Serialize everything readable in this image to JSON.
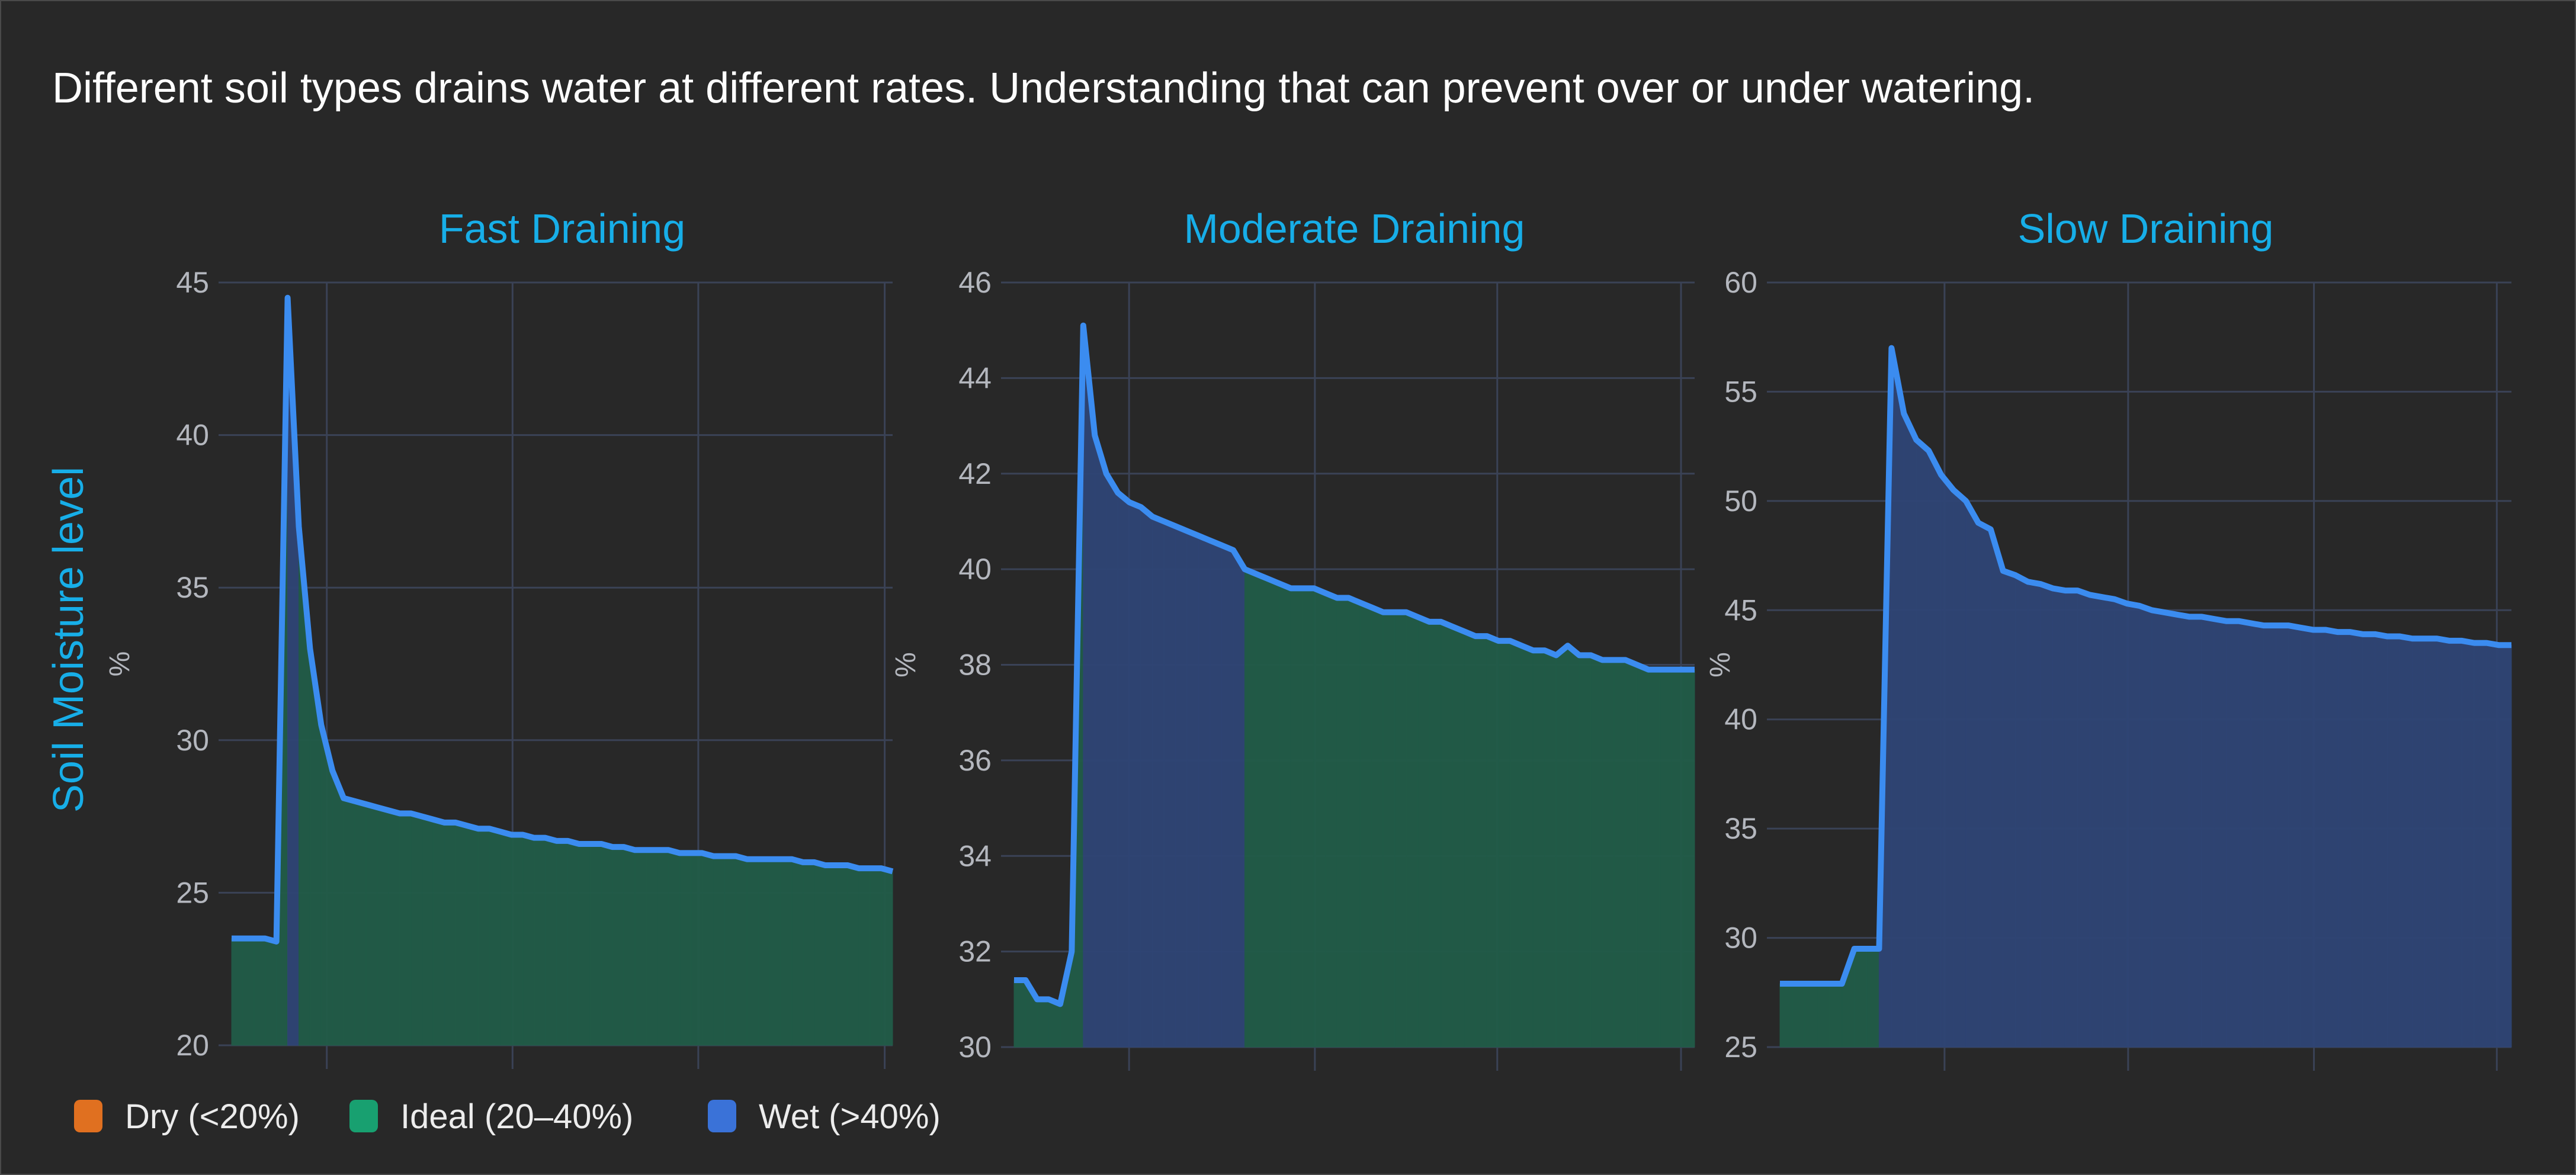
{
  "headline": "Different soil types drains water at different rates. Understanding that can prevent over or under watering.",
  "colors": {
    "background": "#282828",
    "grid": "#3a4256",
    "line": "#3b8cf0",
    "dry": "#e07020",
    "ideal": "#18a070",
    "wet": "#3a72d8",
    "ideal_fill": "#215c48",
    "wet_fill": "#2f4575",
    "title": "#17aee8"
  },
  "chart_data": [
    {
      "type": "area",
      "title": "Fast Draining",
      "ylabel": "Soil Moisture level",
      "yunit": "%",
      "ylim": [
        20,
        45
      ],
      "yticks": [
        20,
        25,
        30,
        35,
        40,
        45
      ],
      "grid": true,
      "values": [
        23.5,
        23.5,
        23.5,
        23.5,
        23.4,
        44.5,
        37.0,
        33.0,
        30.5,
        29.0,
        28.1,
        28.0,
        27.9,
        27.8,
        27.7,
        27.6,
        27.6,
        27.5,
        27.4,
        27.3,
        27.3,
        27.2,
        27.1,
        27.1,
        27.0,
        26.9,
        26.9,
        26.8,
        26.8,
        26.7,
        26.7,
        26.6,
        26.6,
        26.6,
        26.5,
        26.5,
        26.4,
        26.4,
        26.4,
        26.4,
        26.3,
        26.3,
        26.3,
        26.2,
        26.2,
        26.2,
        26.1,
        26.1,
        26.1,
        26.1,
        26.1,
        26.0,
        26.0,
        25.9,
        25.9,
        25.9,
        25.8,
        25.8,
        25.8,
        25.7
      ]
    },
    {
      "type": "area",
      "title": "Moderate Draining",
      "yunit": "%",
      "ylim": [
        30,
        46
      ],
      "yticks": [
        30,
        32,
        34,
        36,
        38,
        40,
        42,
        44,
        46
      ],
      "grid": true,
      "values": [
        31.4,
        31.4,
        31.0,
        31.0,
        30.9,
        32.0,
        45.1,
        42.8,
        42.0,
        41.6,
        41.4,
        41.3,
        41.1,
        41.0,
        40.9,
        40.8,
        40.7,
        40.6,
        40.5,
        40.4,
        40.0,
        39.9,
        39.8,
        39.7,
        39.6,
        39.6,
        39.6,
        39.5,
        39.4,
        39.4,
        39.3,
        39.2,
        39.1,
        39.1,
        39.1,
        39.0,
        38.9,
        38.9,
        38.8,
        38.7,
        38.6,
        38.6,
        38.5,
        38.5,
        38.4,
        38.3,
        38.3,
        38.2,
        38.4,
        38.2,
        38.2,
        38.1,
        38.1,
        38.1,
        38.0,
        37.9,
        37.9,
        37.9,
        37.9,
        37.9
      ]
    },
    {
      "type": "area",
      "title": "Slow Draining",
      "yunit": "%",
      "ylim": [
        25,
        60
      ],
      "yticks": [
        25,
        30,
        35,
        40,
        45,
        50,
        55,
        60
      ],
      "grid": true,
      "values": [
        27.9,
        27.9,
        27.9,
        27.9,
        27.9,
        27.9,
        29.5,
        29.5,
        29.5,
        57.0,
        54.0,
        52.8,
        52.3,
        51.2,
        50.5,
        50.0,
        49.0,
        48.7,
        46.8,
        46.6,
        46.3,
        46.2,
        46.0,
        45.9,
        45.9,
        45.7,
        45.6,
        45.5,
        45.3,
        45.2,
        45.0,
        44.9,
        44.8,
        44.7,
        44.7,
        44.6,
        44.5,
        44.5,
        44.4,
        44.3,
        44.3,
        44.3,
        44.2,
        44.1,
        44.1,
        44.0,
        44.0,
        43.9,
        43.9,
        43.8,
        43.8,
        43.7,
        43.7,
        43.7,
        43.6,
        43.6,
        43.5,
        43.5,
        43.4,
        43.4
      ]
    }
  ],
  "legend": [
    {
      "label": "Dry (<20%)",
      "color": "#e07020"
    },
    {
      "label": "Ideal (20–40%)",
      "color": "#18a070"
    },
    {
      "label": "Wet (>40%)",
      "color": "#3a72d8"
    }
  ]
}
